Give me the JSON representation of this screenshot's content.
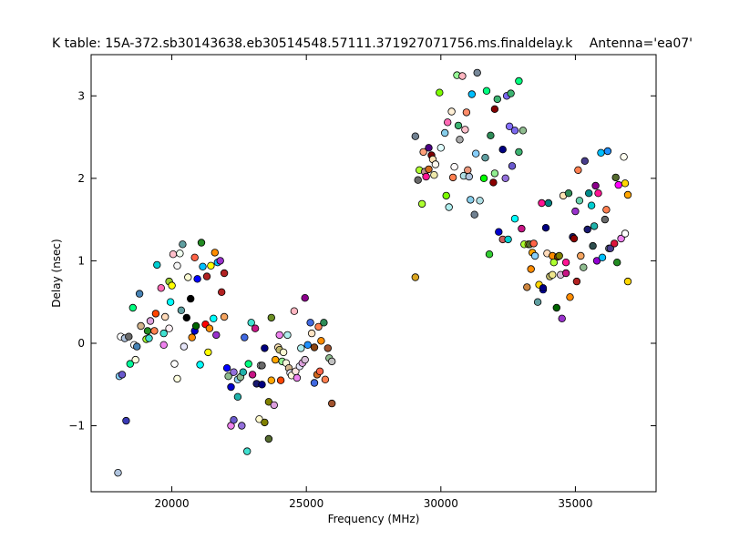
{
  "chart_data": {
    "type": "scatter",
    "title": "K table: 15A-372.sb30143638.eb30514548.57111.371927071756.ms.finaldelay.k",
    "subtitle": "Antenna='ea07'",
    "xlabel": "Frequency (MHz)",
    "ylabel": "Delay (nsec)",
    "xlim": [
      17000,
      38000
    ],
    "ylim": [
      -1.8,
      3.5
    ],
    "xticks": [
      20000,
      25000,
      30000,
      35000
    ],
    "xtick_labels": [
      "20000",
      "25000",
      "30000",
      "35000"
    ],
    "yticks": [
      -1,
      0,
      1,
      2,
      3
    ],
    "ytick_labels": [
      "−1",
      "0",
      "1",
      "2",
      "3"
    ],
    "grid": false,
    "points": [
      [
        18000,
        -1.57,
        "#b0c4de"
      ],
      [
        18050,
        -0.4,
        "#87cefa"
      ],
      [
        18150,
        -0.38,
        "#6a5acd"
      ],
      [
        18300,
        -0.94,
        "#3a3ab5"
      ],
      [
        18100,
        0.08,
        "#ffffff"
      ],
      [
        18250,
        0.06,
        "#b0c4de"
      ],
      [
        18400,
        0.08,
        "#696969"
      ],
      [
        18450,
        -0.25,
        "#00fa9a"
      ],
      [
        18600,
        -0.02,
        "#ffffff"
      ],
      [
        18700,
        -0.04,
        "#4682b4"
      ],
      [
        18650,
        -0.2,
        "#ffffe0"
      ],
      [
        18550,
        0.43,
        "#00ff7f"
      ],
      [
        18800,
        0.6,
        "#4682b4"
      ],
      [
        18850,
        0.21,
        "#d2b48c"
      ],
      [
        19050,
        0.05,
        "#adff2f"
      ],
      [
        19150,
        0.06,
        "#40e0d0"
      ],
      [
        19100,
        0.15,
        "#228b22"
      ],
      [
        19200,
        0.27,
        "#dda0dd"
      ],
      [
        19350,
        0.15,
        "#ff7f50"
      ],
      [
        19450,
        0.95,
        "#00ced1"
      ],
      [
        19400,
        0.36,
        "#ff4500"
      ],
      [
        19600,
        0.67,
        "#ff69b4"
      ],
      [
        19700,
        0.12,
        "#40e0d0"
      ],
      [
        19750,
        0.32,
        "#ffdab9"
      ],
      [
        19700,
        -0.02,
        "#ee82ee"
      ],
      [
        19900,
        0.18,
        "#fff0f5"
      ],
      [
        19950,
        0.5,
        "#00ffff"
      ],
      [
        19900,
        0.75,
        "#9acd32"
      ],
      [
        20000,
        0.7,
        "#ffff00"
      ],
      [
        20050,
        1.08,
        "#ffc0cb"
      ],
      [
        20100,
        -0.25,
        "#ffffff"
      ],
      [
        20200,
        -0.43,
        "#ffffe0"
      ],
      [
        20200,
        0.94,
        "#f5f5f5"
      ],
      [
        20350,
        0.4,
        "#5f9ea0"
      ],
      [
        20300,
        1.09,
        "#f0fff0"
      ],
      [
        20400,
        1.2,
        "#5f9ea0"
      ],
      [
        20450,
        -0.04,
        "#e6e6fa"
      ],
      [
        20550,
        0.31,
        "#000000"
      ],
      [
        20600,
        0.8,
        "#fafad2"
      ],
      [
        20700,
        0.54,
        "#000000"
      ],
      [
        20750,
        0.07,
        "#ff8c00"
      ],
      [
        20850,
        0.15,
        "#0000cd"
      ],
      [
        20850,
        1.04,
        "#ff6347"
      ],
      [
        20900,
        0.21,
        "#006400"
      ],
      [
        20950,
        0.78,
        "#0000ff"
      ],
      [
        21050,
        -0.26,
        "#00ffff"
      ],
      [
        21100,
        1.22,
        "#228b22"
      ],
      [
        21150,
        0.93,
        "#00bfff"
      ],
      [
        21250,
        0.23,
        "#ff0000"
      ],
      [
        21300,
        0.81,
        "#b22222"
      ],
      [
        21350,
        -0.11,
        "#ffff00"
      ],
      [
        21450,
        0.94,
        "#ffff00"
      ],
      [
        21400,
        0.18,
        "#ff8c00"
      ],
      [
        21550,
        0.3,
        "#00ffff"
      ],
      [
        21600,
        1.1,
        "#ff8c00"
      ],
      [
        21650,
        0.1,
        "#9932cc"
      ],
      [
        21700,
        0.98,
        "#00bfff"
      ],
      [
        21800,
        1.0,
        "#9932cc"
      ],
      [
        21850,
        0.62,
        "#b22222"
      ],
      [
        21950,
        0.32,
        "#f4a460"
      ],
      [
        21950,
        0.85,
        "#b22222"
      ],
      [
        22050,
        -0.3,
        "#0000ff"
      ],
      [
        22100,
        -0.4,
        "#8fbc8f"
      ],
      [
        22200,
        -0.53,
        "#0000cd"
      ],
      [
        22200,
        -1.0,
        "#ee82ee"
      ],
      [
        22300,
        -0.35,
        "#9370db"
      ],
      [
        22300,
        -0.93,
        "#6a5acd"
      ],
      [
        22450,
        -0.65,
        "#20b2aa"
      ],
      [
        22450,
        -0.44,
        "#87ceeb"
      ],
      [
        22550,
        -0.41,
        "#8fbc8f"
      ],
      [
        22600,
        -1.0,
        "#9370db"
      ],
      [
        22650,
        -0.35,
        "#20b2aa"
      ],
      [
        22700,
        0.07,
        "#4169e1"
      ],
      [
        22800,
        -1.31,
        "#40e0d0"
      ],
      [
        22850,
        -0.25,
        "#00ff7f"
      ],
      [
        22950,
        0.25,
        "#40e0d0"
      ],
      [
        23000,
        -0.38,
        "#c71585"
      ],
      [
        23100,
        0.18,
        "#c71585"
      ],
      [
        23150,
        -0.49,
        "#191970"
      ],
      [
        23250,
        -0.92,
        "#fffacd"
      ],
      [
        23300,
        -0.27,
        "#ffffff"
      ],
      [
        23350,
        -0.27,
        "#696969"
      ],
      [
        23350,
        -0.5,
        "#000080"
      ],
      [
        23450,
        -0.96,
        "#808000"
      ],
      [
        23450,
        -0.06,
        "#000080"
      ],
      [
        23600,
        -0.71,
        "#808000"
      ],
      [
        23600,
        -1.16,
        "#556b2f"
      ],
      [
        23700,
        0.31,
        "#6b8e23"
      ],
      [
        23700,
        -0.45,
        "#ffa500"
      ],
      [
        23800,
        -0.75,
        "#dda0dd"
      ],
      [
        23850,
        -0.2,
        "#ffa500"
      ],
      [
        23950,
        -0.05,
        "#ffe4b5"
      ],
      [
        24000,
        0.1,
        "#ee82ee"
      ],
      [
        24050,
        -0.45,
        "#ff4500"
      ],
      [
        24000,
        -0.08,
        "#bdb76b"
      ],
      [
        24100,
        -0.22,
        "#90ee90"
      ],
      [
        24150,
        -0.11,
        "#fafad2"
      ],
      [
        24250,
        -0.24,
        "#f5f5dc"
      ],
      [
        24300,
        0.1,
        "#afeeee"
      ],
      [
        24350,
        -0.3,
        "#d2b48c"
      ],
      [
        24400,
        -0.36,
        "#e6e6fa"
      ],
      [
        24450,
        -0.39,
        "#fff8dc"
      ],
      [
        24550,
        0.39,
        "#ffb6c1"
      ],
      [
        24600,
        -0.34,
        "#ffe4e1"
      ],
      [
        24650,
        -0.42,
        "#ee82ee"
      ],
      [
        24750,
        -0.28,
        "#e6e6fa"
      ],
      [
        24800,
        -0.06,
        "#afeeee"
      ],
      [
        24850,
        -0.24,
        "#dda0dd"
      ],
      [
        24950,
        0.55,
        "#8b008b"
      ],
      [
        24950,
        -0.2,
        "#d8bfd8"
      ],
      [
        25050,
        -0.02,
        "#1e90ff"
      ],
      [
        25150,
        0.25,
        "#4169e1"
      ],
      [
        25200,
        0.12,
        "#ffe4c4"
      ],
      [
        25300,
        -0.48,
        "#4169e1"
      ],
      [
        25300,
        -0.05,
        "#8b4513"
      ],
      [
        25400,
        -0.38,
        "#d2691e"
      ],
      [
        25450,
        0.2,
        "#ff7f50"
      ],
      [
        25500,
        -0.34,
        "#ff6347"
      ],
      [
        25550,
        0.03,
        "#ff8c00"
      ],
      [
        25650,
        0.25,
        "#2e8b57"
      ],
      [
        25700,
        -0.44,
        "#ff7f50"
      ],
      [
        25800,
        -0.06,
        "#a0522d"
      ],
      [
        25850,
        -0.18,
        "#8fbc8f"
      ],
      [
        25950,
        -0.73,
        "#a0522d"
      ],
      [
        25950,
        -0.22,
        "#c0c0c0"
      ],
      [
        29050,
        0.8,
        "#daa520"
      ],
      [
        29050,
        2.51,
        "#708090"
      ],
      [
        29150,
        1.98,
        "#696969"
      ],
      [
        29200,
        2.1,
        "#adff2f"
      ],
      [
        29300,
        1.69,
        "#adff2f"
      ],
      [
        29350,
        2.32,
        "#ffa07a"
      ],
      [
        29400,
        2.08,
        "#bc8f8f"
      ],
      [
        29450,
        2.02,
        "#ff1493"
      ],
      [
        29550,
        2.37,
        "#4b0082"
      ],
      [
        29550,
        2.11,
        "#d2691e"
      ],
      [
        29650,
        2.28,
        "#800000"
      ],
      [
        29700,
        2.23,
        "#ffe4b5"
      ],
      [
        29750,
        2.04,
        "#eee8aa"
      ],
      [
        29800,
        2.17,
        "#fffaf0"
      ],
      [
        29950,
        3.04,
        "#7cfc00"
      ],
      [
        30000,
        2.37,
        "#e0ffff"
      ],
      [
        30150,
        2.55,
        "#87ceeb"
      ],
      [
        30200,
        1.79,
        "#7cfc00"
      ],
      [
        30250,
        2.68,
        "#ff69b4"
      ],
      [
        30300,
        1.65,
        "#afeeee"
      ],
      [
        30400,
        2.81,
        "#ffefd5"
      ],
      [
        30450,
        2.01,
        "#ff7f50"
      ],
      [
        30500,
        2.14,
        "#fffafa"
      ],
      [
        30600,
        3.25,
        "#98fb98"
      ],
      [
        30650,
        2.64,
        "#3cb371"
      ],
      [
        30700,
        2.47,
        "#a9a9a9"
      ],
      [
        30800,
        3.24,
        "#ffb6c1"
      ],
      [
        30850,
        2.03,
        "#b0e0e6"
      ],
      [
        30900,
        2.59,
        "#ffc0cb"
      ],
      [
        30950,
        2.8,
        "#ff8c69"
      ],
      [
        31000,
        2.1,
        "#e9967a"
      ],
      [
        31050,
        2.02,
        "#b0c4de"
      ],
      [
        31100,
        1.74,
        "#87ceeb"
      ],
      [
        31150,
        3.02,
        "#00bfff"
      ],
      [
        31250,
        1.56,
        "#708090"
      ],
      [
        31300,
        2.3,
        "#87cefa"
      ],
      [
        31350,
        3.28,
        "#778899"
      ],
      [
        31450,
        1.73,
        "#b0e0e6"
      ],
      [
        31600,
        2.0,
        "#00ff00"
      ],
      [
        31650,
        2.25,
        "#5f9ea0"
      ],
      [
        31700,
        3.06,
        "#00ff7f"
      ],
      [
        31800,
        1.08,
        "#32cd32"
      ],
      [
        31850,
        2.52,
        "#2e8b57"
      ],
      [
        31950,
        1.95,
        "#8b0000"
      ],
      [
        32000,
        2.84,
        "#800000"
      ],
      [
        32000,
        2.06,
        "#90ee90"
      ],
      [
        32100,
        2.96,
        "#3cb371"
      ],
      [
        32150,
        1.35,
        "#0000cd"
      ],
      [
        32300,
        2.35,
        "#000080"
      ],
      [
        32300,
        1.26,
        "#cd5c5c"
      ],
      [
        32400,
        2.0,
        "#9370db"
      ],
      [
        32450,
        3.0,
        "#7b68ee"
      ],
      [
        32500,
        1.26,
        "#00ced1"
      ],
      [
        32550,
        2.63,
        "#8470ff"
      ],
      [
        32600,
        3.03,
        "#3cb371"
      ],
      [
        32650,
        2.15,
        "#6a5acd"
      ],
      [
        32750,
        2.58,
        "#7b68ee"
      ],
      [
        32750,
        1.51,
        "#00ffff"
      ],
      [
        32900,
        3.18,
        "#00ff7f"
      ],
      [
        32900,
        2.32,
        "#3cb371"
      ],
      [
        33000,
        1.39,
        "#c71585"
      ],
      [
        33050,
        2.58,
        "#8fbc8f"
      ],
      [
        33100,
        1.2,
        "#adff2f"
      ],
      [
        33250,
        1.2,
        "#ffff00"
      ],
      [
        33200,
        0.68,
        "#cd853f"
      ],
      [
        33300,
        1.2,
        "#556b2f"
      ],
      [
        33350,
        0.9,
        "#ff8c00"
      ],
      [
        33400,
        1.1,
        "#ffa500"
      ],
      [
        33450,
        1.21,
        "#ff6347"
      ],
      [
        33500,
        1.06,
        "#87cefa"
      ],
      [
        33600,
        0.5,
        "#5f9ea0"
      ],
      [
        33650,
        0.71,
        "#ffd700"
      ],
      [
        33750,
        1.7,
        "#ff1493"
      ],
      [
        33800,
        0.65,
        "#0000ff"
      ],
      [
        33800,
        0.67,
        "#000080"
      ],
      [
        33900,
        1.4,
        "#000080"
      ],
      [
        33950,
        1.09,
        "#ffdab9"
      ],
      [
        34000,
        1.7,
        "#008080"
      ],
      [
        34050,
        0.81,
        "#bdb76b"
      ],
      [
        34150,
        1.06,
        "#ff8c00"
      ],
      [
        34150,
        0.83,
        "#f0e68c"
      ],
      [
        34200,
        0.98,
        "#adff2f"
      ],
      [
        34300,
        0.43,
        "#006400"
      ],
      [
        34350,
        1.05,
        "#8b4513"
      ],
      [
        34400,
        1.06,
        "#808000"
      ],
      [
        34450,
        0.83,
        "#d8bfd8"
      ],
      [
        34500,
        0.3,
        "#9932cc"
      ],
      [
        34550,
        1.79,
        "#ffe4b5"
      ],
      [
        34650,
        0.85,
        "#c71585"
      ],
      [
        34650,
        0.98,
        "#ff1493"
      ],
      [
        34750,
        1.82,
        "#2e8b57"
      ],
      [
        34800,
        0.56,
        "#ff8c00"
      ],
      [
        34900,
        1.29,
        "#191970"
      ],
      [
        34950,
        1.27,
        "#8b0000"
      ],
      [
        35000,
        1.6,
        "#9932cc"
      ],
      [
        35050,
        0.75,
        "#b22222"
      ],
      [
        35100,
        2.1,
        "#ff7f50"
      ],
      [
        35150,
        1.73,
        "#66cdaa"
      ],
      [
        35200,
        1.06,
        "#f4a460"
      ],
      [
        35300,
        0.92,
        "#8fbc8f"
      ],
      [
        35350,
        2.21,
        "#483d8b"
      ],
      [
        35450,
        1.38,
        "#191970"
      ],
      [
        35500,
        1.82,
        "#008b8b"
      ],
      [
        35600,
        1.67,
        "#00ced1"
      ],
      [
        35650,
        1.18,
        "#2f4f4f"
      ],
      [
        35700,
        1.42,
        "#20b2aa"
      ],
      [
        35750,
        1.91,
        "#8b008b"
      ],
      [
        35800,
        1.0,
        "#9400d3"
      ],
      [
        35850,
        1.82,
        "#ff1493"
      ],
      [
        35950,
        2.31,
        "#00bfff"
      ],
      [
        36000,
        1.04,
        "#00bfff"
      ],
      [
        36100,
        1.5,
        "#696969"
      ],
      [
        36150,
        1.62,
        "#ff7f50"
      ],
      [
        36200,
        2.33,
        "#1e90ff"
      ],
      [
        36250,
        1.15,
        "#708090"
      ],
      [
        36300,
        1.15,
        "#483d8b"
      ],
      [
        36450,
        1.21,
        "#dc143c"
      ],
      [
        36500,
        2.01,
        "#556b2f"
      ],
      [
        36550,
        0.98,
        "#228b22"
      ],
      [
        36600,
        1.92,
        "#ff00ff"
      ],
      [
        36700,
        1.27,
        "#ee82ee"
      ],
      [
        36800,
        2.26,
        "#fffff0"
      ],
      [
        36850,
        1.33,
        "#ffffff"
      ],
      [
        36850,
        1.94,
        "#ffd700"
      ],
      [
        36950,
        1.8,
        "#ffa500"
      ],
      [
        36950,
        0.75,
        "#ffd700"
      ]
    ]
  }
}
